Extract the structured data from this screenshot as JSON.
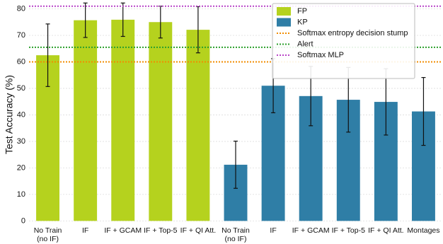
{
  "chart_data": {
    "type": "bar",
    "y_label": "Test Accuracy (%)",
    "categories": [
      "No Train\n(no IF)",
      "IF",
      "IF + GCAM",
      "IF + Top-5",
      "IF + QI Att.",
      "No Train\n(no IF)",
      "IF",
      "IF + GCAM",
      "IF + Top-5",
      "IF + QI Att.",
      "Montages"
    ],
    "series": [
      {
        "name": "FP",
        "color": "#b5d21e",
        "values": [
          62.5,
          75.7,
          75.9,
          75.0,
          72.1,
          null,
          null,
          null,
          null,
          null,
          null
        ],
        "errors": [
          11.8,
          6.5,
          6.3,
          6.0,
          8.7,
          null,
          null,
          null,
          null,
          null,
          null
        ]
      },
      {
        "name": "KP",
        "color": "#2f7ea6",
        "values": [
          null,
          null,
          null,
          null,
          null,
          21.2,
          51.0,
          47.1,
          45.7,
          44.9,
          41.3
        ],
        "errors": [
          null,
          null,
          null,
          null,
          null,
          8.9,
          10.2,
          11.2,
          12.2,
          12.5,
          12.8
        ]
      }
    ],
    "reference_lines": [
      {
        "name": "Softmax entropy decision stump",
        "value": 60,
        "color": "#f28c00"
      },
      {
        "name": "Alert",
        "value": 65.5,
        "color": "#2ca02c"
      },
      {
        "name": "Softmax MLP",
        "value": 81,
        "color": "#b944c8"
      }
    ],
    "ylim": [
      -1.5,
      82
    ],
    "yticks": [
      0,
      10,
      20,
      30,
      40,
      50,
      60,
      70,
      80
    ],
    "grid": true,
    "legend": "upper right"
  }
}
